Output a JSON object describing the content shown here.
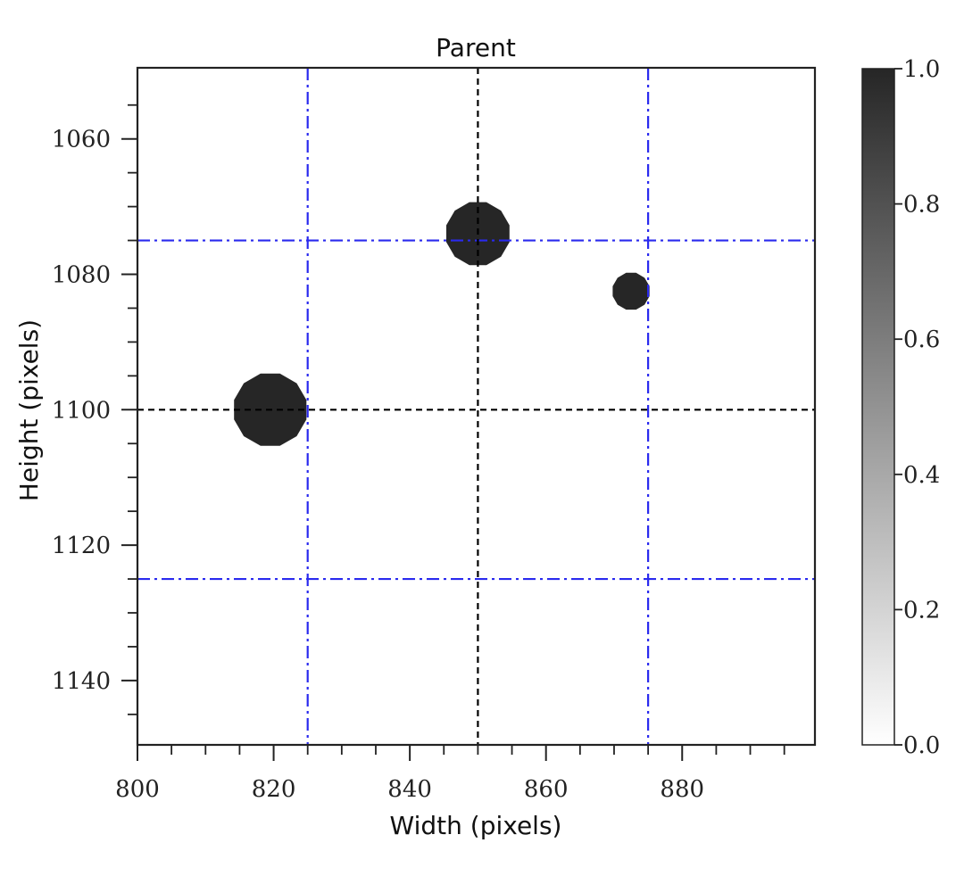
{
  "chart_data": {
    "type": "heatmap",
    "title": "Parent",
    "xlabel": "Width (pixels)",
    "ylabel": "Height (pixels)",
    "xlim": [
      800,
      899.5
    ],
    "ylim": [
      1149.5,
      1049.5
    ],
    "y_inverted": true,
    "x_ticks": [
      800,
      820,
      840,
      860,
      880
    ],
    "x_minor_ticks": [
      805,
      810,
      815,
      825,
      830,
      835,
      845,
      850,
      855,
      865,
      870,
      875,
      885,
      890,
      895
    ],
    "y_ticks": [
      1060,
      1080,
      1100,
      1120,
      1140
    ],
    "y_minor_ticks": [
      1055,
      1065,
      1070,
      1075,
      1085,
      1090,
      1095,
      1105,
      1110,
      1115,
      1125,
      1130,
      1135,
      1145
    ],
    "colormap": "Greys",
    "colorbar": {
      "min": 0.0,
      "max": 1.0,
      "ticks": [
        "0.0",
        "0.2",
        "0.4",
        "0.6",
        "0.8",
        "1.0"
      ]
    },
    "blobs": [
      {
        "cx": 819.5,
        "cy": 1100,
        "r": 5.5,
        "value": 0.85
      },
      {
        "cx": 850,
        "cy": 1074,
        "r": 4.8,
        "value": 0.85
      },
      {
        "cx": 872.5,
        "cy": 1082.5,
        "r": 2.8,
        "value": 0.85
      }
    ],
    "center_lines": {
      "x": 850,
      "y": 1100,
      "color": "#000000",
      "style": "dashed"
    },
    "box_lines": {
      "x": [
        825,
        875
      ],
      "y": [
        1075,
        1125
      ],
      "color": "#2a2aee",
      "style": "dash-dot"
    },
    "grid": false,
    "legend": "none"
  }
}
